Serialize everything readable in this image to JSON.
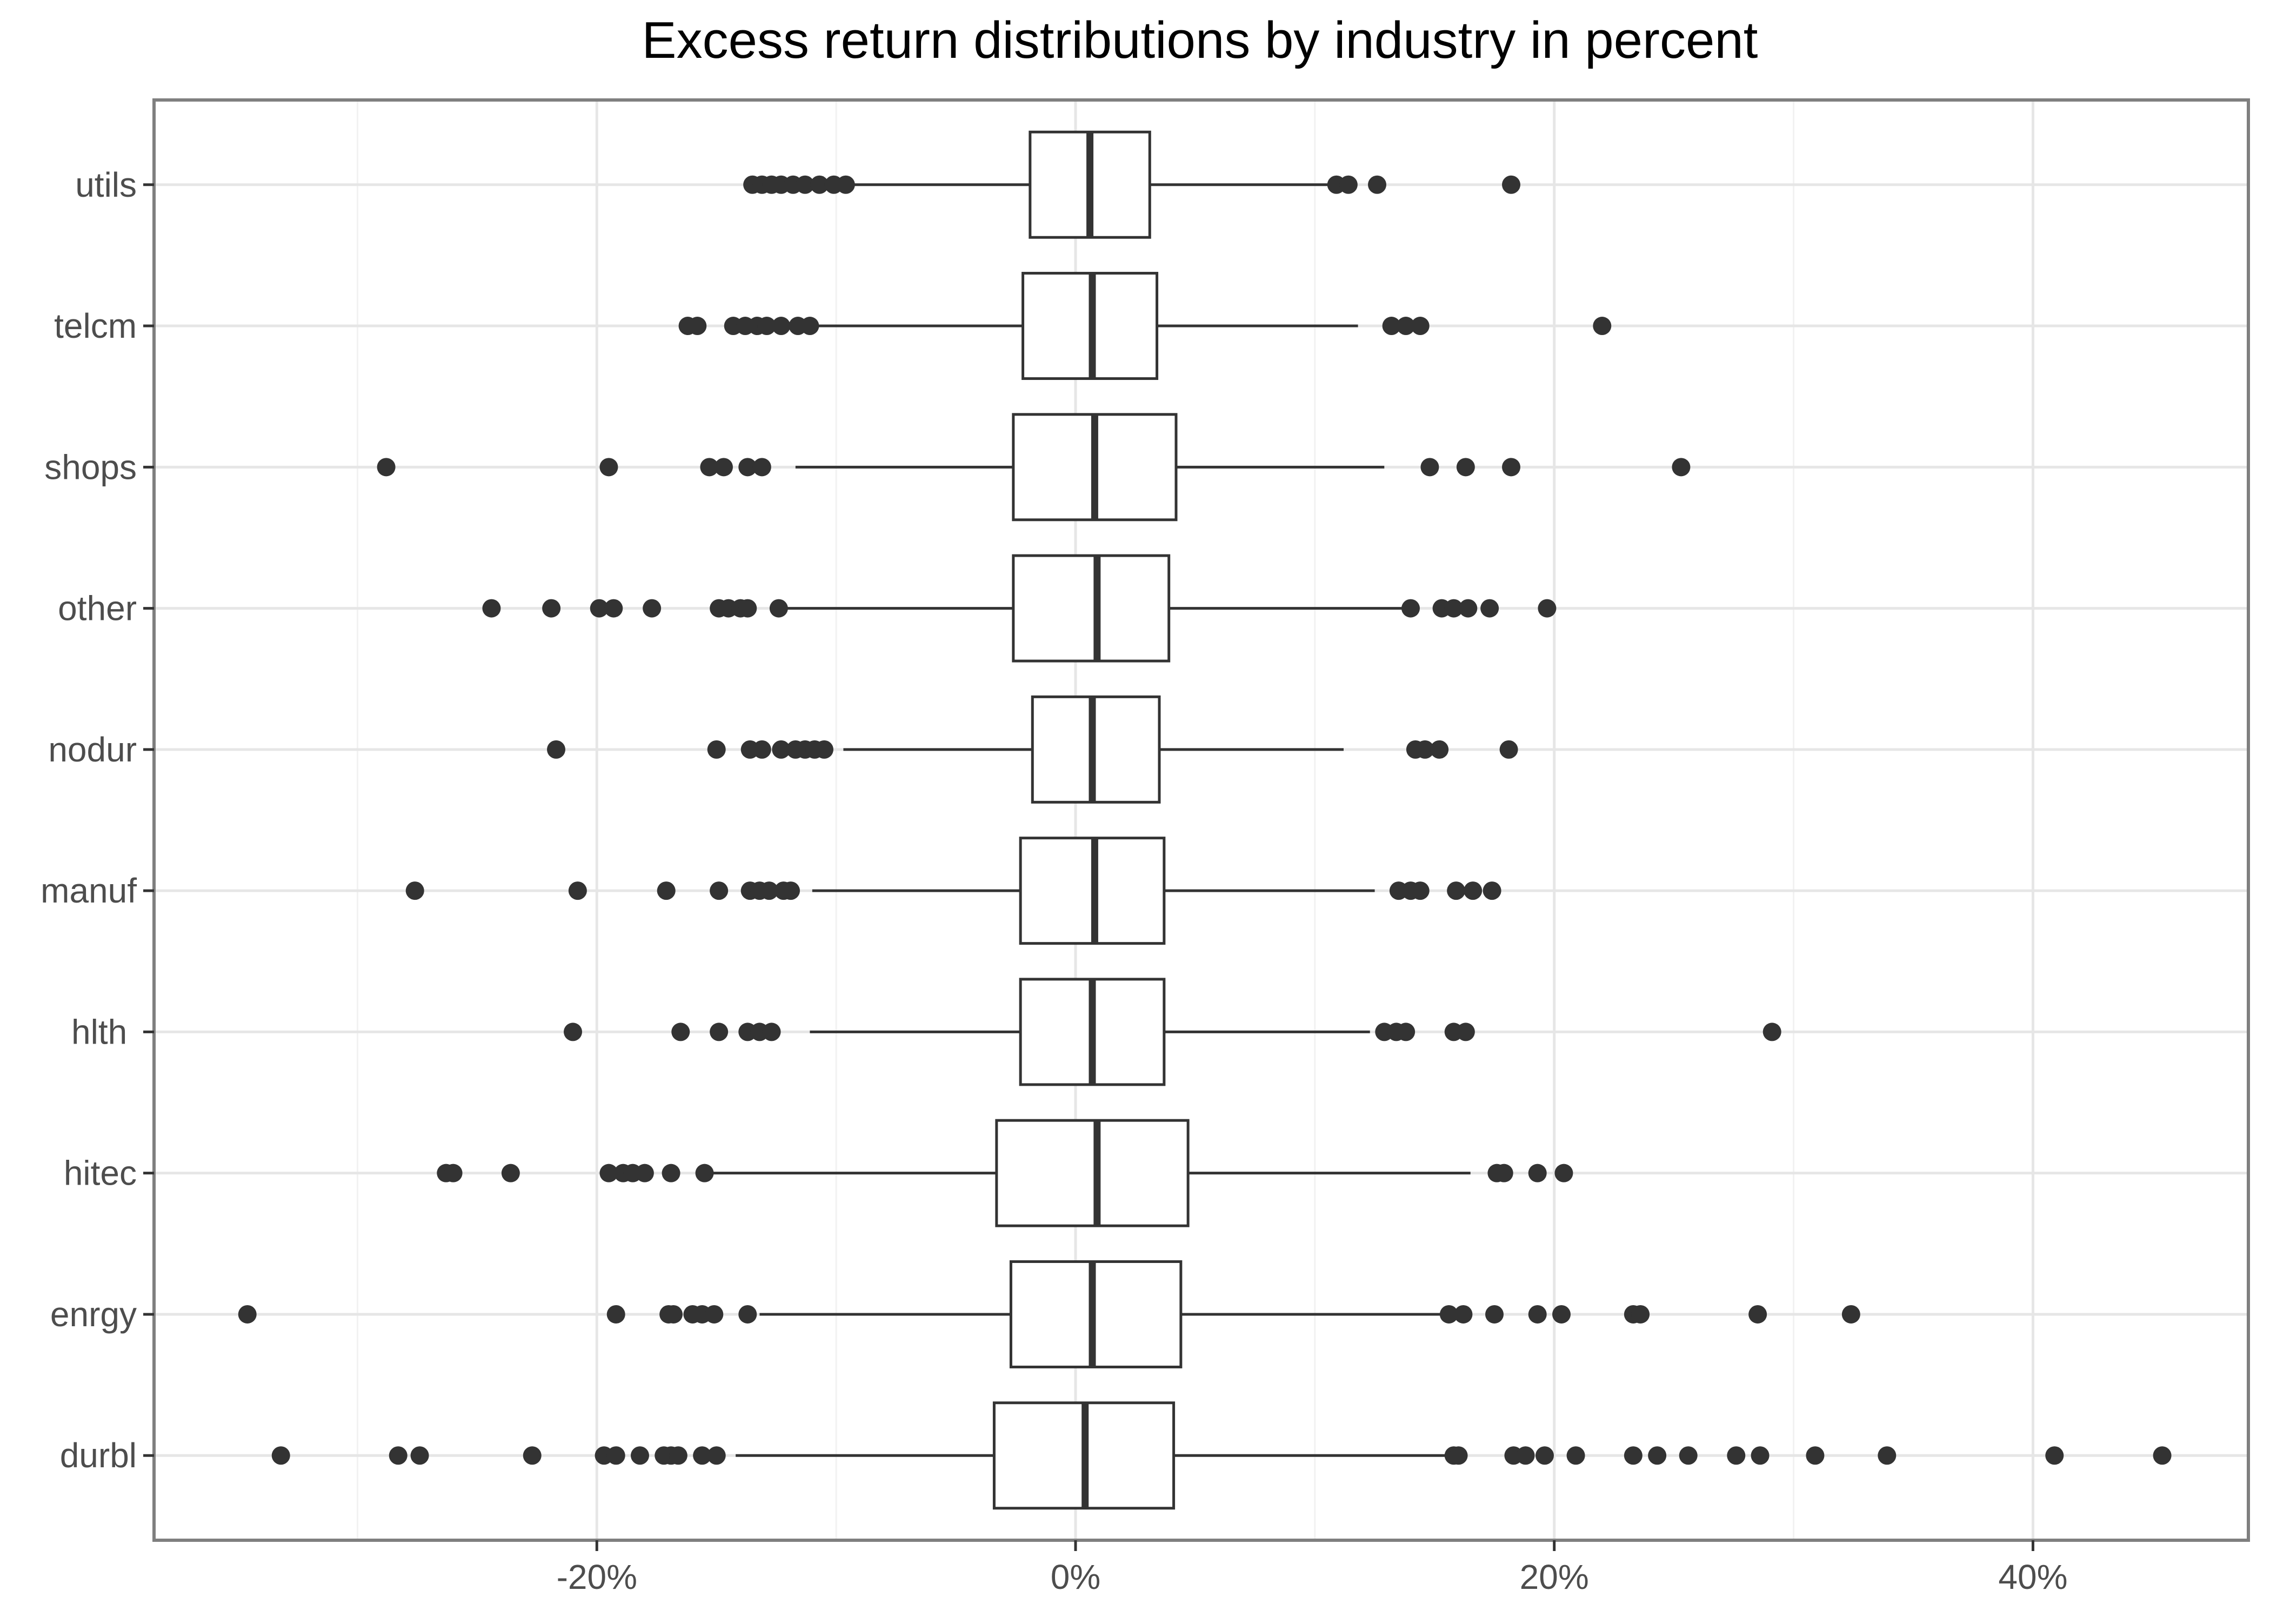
{
  "chart_data": {
    "type": "boxplot",
    "title": "Excess return distributions by industry in percent",
    "xlabel": "",
    "ylabel": "",
    "x_ticks": [
      -20,
      0,
      20,
      40
    ],
    "x_tick_labels": [
      "-20%",
      "0%",
      "20%",
      "40%"
    ],
    "xlim": [
      -38.5,
      49
    ],
    "grid": true,
    "categories": [
      "durbl",
      "enrgy",
      "hitec",
      "hlth ",
      "manuf",
      "nodur",
      "other",
      "shops",
      "telcm",
      "utils"
    ],
    "boxes": [
      {
        "category": "durbl",
        "whisker_low": -14.2,
        "q1": -3.4,
        "median": 0.4,
        "q3": 4.1,
        "whisker_high": 15.8,
        "outliers": [
          -33.2,
          -28.3,
          -27.4,
          -22.7,
          -19.7,
          -19.2,
          -18.2,
          -17.2,
          -16.9,
          -16.6,
          -15.6,
          -15.0,
          15.8,
          16.0,
          18.3,
          18.8,
          19.6,
          20.9,
          23.3,
          24.3,
          25.6,
          27.6,
          28.6,
          30.9,
          33.9,
          40.9,
          45.4
        ]
      },
      {
        "category": "enrgy",
        "whisker_low": -13.2,
        "q1": -2.7,
        "median": 0.7,
        "q3": 4.4,
        "whisker_high": 15.3,
        "outliers": [
          -34.6,
          -19.2,
          -17.0,
          -16.8,
          -16.0,
          -15.6,
          -15.1,
          -13.7,
          15.6,
          16.2,
          17.5,
          19.3,
          20.3,
          23.3,
          23.6,
          28.5,
          32.4
        ]
      },
      {
        "category": "hitec",
        "whisker_low": -15.2,
        "q1": -3.3,
        "median": 0.9,
        "q3": 4.7,
        "whisker_high": 16.5,
        "outliers": [
          -26.3,
          -26.0,
          -23.6,
          -19.5,
          -18.9,
          -18.5,
          -18.0,
          -16.9,
          -15.5,
          17.6,
          17.9,
          19.3,
          20.4
        ]
      },
      {
        "category": "hlth ",
        "whisker_low": -11.1,
        "q1": -2.3,
        "median": 0.7,
        "q3": 3.7,
        "whisker_high": 12.3,
        "outliers": [
          -21.0,
          -16.5,
          -14.9,
          -13.7,
          -13.2,
          -12.7,
          12.9,
          13.4,
          13.8,
          15.8,
          16.3,
          29.1
        ]
      },
      {
        "category": "manuf",
        "whisker_low": -11.0,
        "q1": -2.3,
        "median": 0.8,
        "q3": 3.7,
        "whisker_high": 12.5,
        "outliers": [
          -27.6,
          -20.8,
          -17.1,
          -14.9,
          -13.6,
          -13.2,
          -12.8,
          -12.2,
          -11.9,
          13.5,
          14.0,
          14.4,
          15.9,
          16.6,
          17.4
        ]
      },
      {
        "category": "nodur",
        "whisker_low": -9.7,
        "q1": -1.8,
        "median": 0.7,
        "q3": 3.5,
        "whisker_high": 11.2,
        "outliers": [
          -21.7,
          -15.0,
          -13.6,
          -13.1,
          -12.3,
          -11.7,
          -11.3,
          -10.9,
          -10.5,
          14.2,
          14.6,
          15.2,
          18.1
        ]
      },
      {
        "category": "other",
        "whisker_low": -12.2,
        "q1": -2.6,
        "median": 0.9,
        "q3": 3.9,
        "whisker_high": 13.9,
        "outliers": [
          -24.4,
          -21.9,
          -19.9,
          -19.3,
          -17.7,
          -14.9,
          -14.5,
          -14.0,
          -13.7,
          -12.4,
          14.0,
          15.3,
          15.8,
          16.4,
          17.3,
          19.7
        ]
      },
      {
        "category": "shops",
        "whisker_low": -11.7,
        "q1": -2.6,
        "median": 0.8,
        "q3": 4.2,
        "whisker_high": 12.9,
        "outliers": [
          -28.8,
          -19.5,
          -15.3,
          -14.7,
          -13.7,
          -13.1,
          14.8,
          16.3,
          18.2,
          25.3
        ]
      },
      {
        "category": "telcm",
        "whisker_low": -10.8,
        "q1": -2.2,
        "median": 0.7,
        "q3": 3.4,
        "whisker_high": 11.8,
        "outliers": [
          -16.2,
          -15.8,
          -14.3,
          -13.8,
          -13.3,
          -12.9,
          -12.3,
          -11.6,
          -11.1,
          13.2,
          13.8,
          14.4,
          22.0
        ]
      },
      {
        "category": "utils",
        "whisker_low": -9.4,
        "q1": -1.9,
        "median": 0.6,
        "q3": 3.1,
        "whisker_high": 10.8,
        "outliers": [
          -13.5,
          -13.1,
          -12.7,
          -12.3,
          -11.8,
          -11.3,
          -10.7,
          -10.1,
          -9.6,
          10.9,
          11.4,
          12.6,
          18.2
        ]
      }
    ]
  }
}
